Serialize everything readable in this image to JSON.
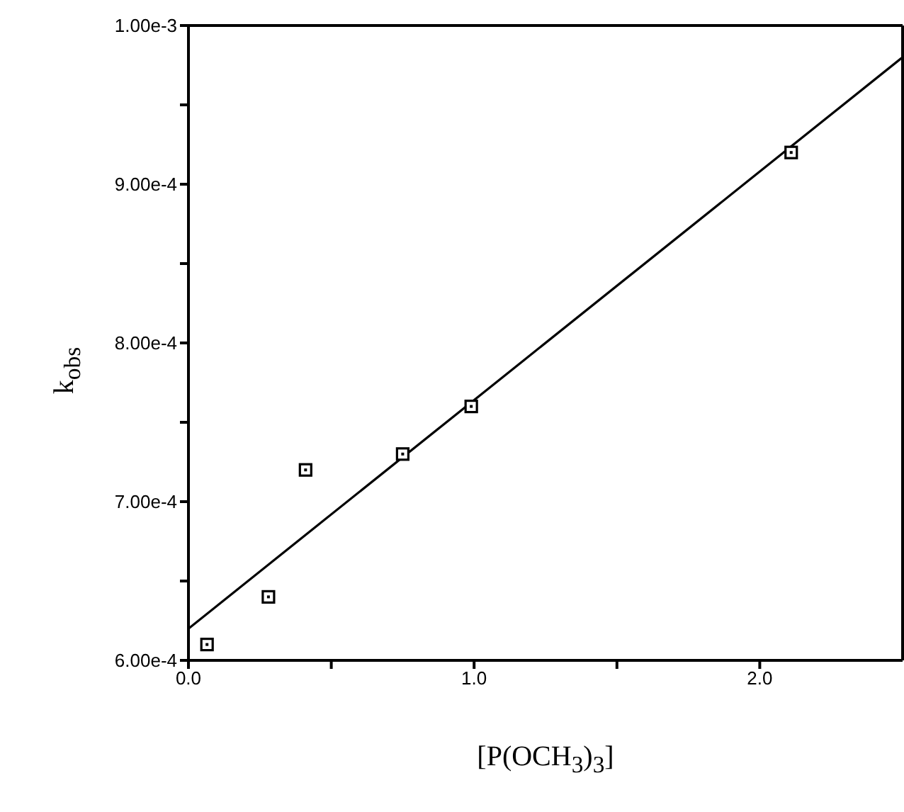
{
  "chart_data": {
    "type": "scatter",
    "xlabel": "[P(OCH$_{3}$)$_{3}$]",
    "ylabel": "k$_{obs}$",
    "xlim": [
      0,
      2.5
    ],
    "xticks": [
      {
        "value": 0,
        "label": "0.0"
      },
      {
        "value": 0.5,
        "label": null
      },
      {
        "value": 1,
        "label": "1.0"
      },
      {
        "value": 1.5,
        "label": null
      },
      {
        "value": 2,
        "label": "2.0"
      }
    ],
    "ylim": [
      0.0006,
      0.001
    ],
    "yticks": [
      {
        "value": 0.0006,
        "label": "6.00e-4"
      },
      {
        "value": 0.00065,
        "label": null
      },
      {
        "value": 0.0007,
        "label": "7.00e-4"
      },
      {
        "value": 0.00075,
        "label": null
      },
      {
        "value": 0.0008,
        "label": "8.00e-4"
      },
      {
        "value": 0.00085,
        "label": null
      },
      {
        "value": 0.0009,
        "label": "9.00e-4"
      },
      {
        "value": 0.00095,
        "label": null
      },
      {
        "value": 0.001,
        "label": "1.00e-3"
      }
    ],
    "marker": "square",
    "series": [
      {
        "color": "#000000",
        "x": [
          0.065,
          0.28,
          0.41,
          0.75,
          0.99,
          2.11
        ],
        "values": [
          0.00061,
          0.00064,
          0.00072,
          0.00073,
          0.00076,
          0.00092
        ]
      },
      {
        "type": "line",
        "color": "#000000",
        "marker": "none",
        "line_style": "solid",
        "x": [
          0,
          2.5
        ],
        "values": [
          0.00062,
          0.00098
        ]
      }
    ]
  }
}
